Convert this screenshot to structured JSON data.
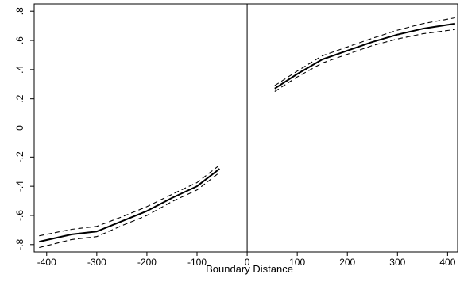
{
  "chart_data": {
    "type": "line",
    "title": "",
    "xlabel": "Boundary Distance",
    "ylabel": "",
    "xlim": [
      -425,
      420
    ],
    "ylim": [
      -0.85,
      0.85
    ],
    "xticks": [
      -400,
      -300,
      -200,
      -100,
      0,
      100,
      200,
      300,
      400
    ],
    "xtick_labels": [
      "-400",
      "-300",
      "-200",
      "-100",
      "0",
      "100",
      "200",
      "300",
      "400"
    ],
    "yticks": [
      -0.8,
      -0.6,
      -0.4,
      -0.2,
      0,
      0.2,
      0.4,
      0.6,
      0.8
    ],
    "ytick_labels": [
      "-.8",
      "-.6",
      "-.4",
      "-.2",
      "0",
      ".2",
      ".4",
      ".6",
      ".8"
    ],
    "grid": false,
    "legend": "none",
    "reference_lines": {
      "x": 0,
      "y": 0
    },
    "colors": {
      "line": "#000000",
      "axis": "#000000",
      "background": "#ffffff"
    },
    "series": [
      {
        "segment": "left",
        "role": "estimate",
        "style": "solid",
        "x": [
          -415,
          -350,
          -300,
          -250,
          -200,
          -150,
          -100,
          -55
        ],
        "y": [
          -0.78,
          -0.73,
          -0.71,
          -0.64,
          -0.57,
          -0.48,
          -0.4,
          -0.28
        ]
      },
      {
        "segment": "left",
        "role": "upper",
        "style": "dashed",
        "x": [
          -415,
          -350,
          -300,
          -250,
          -200,
          -150,
          -100,
          -55
        ],
        "y": [
          -0.74,
          -0.695,
          -0.675,
          -0.61,
          -0.54,
          -0.455,
          -0.375,
          -0.255
        ]
      },
      {
        "segment": "left",
        "role": "lower",
        "style": "dashed",
        "x": [
          -415,
          -350,
          -300,
          -250,
          -200,
          -150,
          -100,
          -55
        ],
        "y": [
          -0.82,
          -0.765,
          -0.745,
          -0.67,
          -0.6,
          -0.505,
          -0.425,
          -0.305
        ]
      },
      {
        "segment": "right",
        "role": "estimate",
        "style": "solid",
        "x": [
          55,
          100,
          150,
          200,
          250,
          300,
          350,
          415
        ],
        "y": [
          0.27,
          0.37,
          0.47,
          0.53,
          0.59,
          0.64,
          0.68,
          0.715
        ]
      },
      {
        "segment": "right",
        "role": "upper",
        "style": "dashed",
        "x": [
          55,
          100,
          150,
          200,
          250,
          300,
          350,
          415
        ],
        "y": [
          0.29,
          0.39,
          0.495,
          0.555,
          0.615,
          0.67,
          0.715,
          0.755
        ]
      },
      {
        "segment": "right",
        "role": "lower",
        "style": "dashed",
        "x": [
          55,
          100,
          150,
          200,
          250,
          300,
          350,
          415
        ],
        "y": [
          0.25,
          0.35,
          0.445,
          0.505,
          0.565,
          0.61,
          0.645,
          0.675
        ]
      }
    ]
  }
}
